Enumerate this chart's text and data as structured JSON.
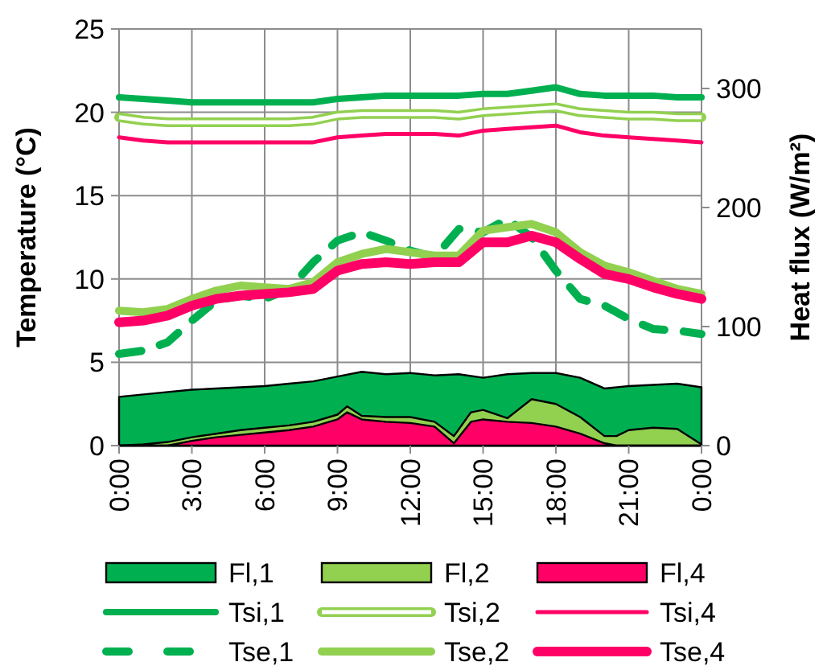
{
  "chart_data": {
    "type": "line",
    "xlabel": null,
    "ylabel": "Temperature (°C)",
    "y2label": "Heat flux (W/m²)",
    "x": [
      0,
      1,
      2,
      3,
      4,
      5,
      6,
      7,
      8,
      9,
      10,
      11,
      12,
      13,
      14,
      15,
      16,
      17,
      18,
      19,
      20,
      21,
      22,
      23,
      24
    ],
    "xlim": [
      0,
      24
    ],
    "xticks": [
      {
        "value": 0,
        "label": "0:00"
      },
      {
        "value": 3,
        "label": "3:00"
      },
      {
        "value": 6,
        "label": "6:00"
      },
      {
        "value": 9,
        "label": "9:00"
      },
      {
        "value": 12,
        "label": "12:00"
      },
      {
        "value": 15,
        "label": "15:00"
      },
      {
        "value": 18,
        "label": "18:00"
      },
      {
        "value": 21,
        "label": "21:00"
      },
      {
        "value": 24,
        "label": "0:00"
      }
    ],
    "ylim": [
      0,
      25
    ],
    "yticks": [
      0,
      5,
      10,
      15,
      20,
      25
    ],
    "y2lim": [
      0,
      350
    ],
    "y2ticks": [
      0,
      100,
      200,
      300
    ],
    "grid": true,
    "legend": "bottom",
    "series": [
      {
        "name": "Fl,1",
        "type": "area",
        "axis": "y2",
        "color": "#00b050",
        "x": [
          0,
          1,
          2,
          3,
          4,
          5,
          6,
          7,
          8,
          9,
          10,
          11,
          12,
          13,
          14,
          15,
          16,
          17,
          18,
          19,
          20,
          21,
          22,
          23,
          24
        ],
        "values": [
          41,
          43,
          45,
          47,
          48,
          49,
          50,
          52,
          54,
          58,
          62,
          60,
          61,
          59,
          60,
          57,
          60,
          61,
          61,
          57,
          48,
          50,
          51,
          52,
          49
        ]
      },
      {
        "name": "Fl,2",
        "type": "area",
        "axis": "y2",
        "color": "#92d050",
        "x": [
          0,
          1,
          2,
          3,
          4,
          5,
          6,
          7,
          8,
          9,
          9.4,
          10,
          11,
          12,
          13,
          13.8,
          14.5,
          15,
          16,
          17,
          18,
          19,
          20,
          20.5,
          21,
          22,
          23,
          24
        ],
        "values": [
          0,
          1,
          3,
          7,
          10,
          13,
          15,
          17,
          20,
          26,
          33,
          25,
          24,
          24,
          20,
          8,
          28,
          30,
          23,
          39,
          35,
          24,
          8,
          8,
          13,
          15,
          14,
          1
        ]
      },
      {
        "name": "Fl,4",
        "type": "area",
        "axis": "y2",
        "color": "#ff0066",
        "x": [
          0,
          1,
          2,
          3,
          4,
          5,
          6,
          7,
          8,
          9,
          9.4,
          10,
          11,
          12,
          13,
          13.8,
          14.5,
          15,
          16,
          17,
          18,
          19,
          20,
          20.5,
          21,
          22,
          23,
          24
        ],
        "values": [
          0,
          0,
          0,
          4,
          7,
          9,
          11,
          13,
          16,
          22,
          28,
          22,
          20,
          19,
          16,
          2,
          20,
          22,
          20,
          19,
          16,
          10,
          2,
          0,
          0,
          0,
          0,
          0
        ]
      },
      {
        "name": "Tsi,1",
        "color": "#00b050",
        "values": [
          20.9,
          20.8,
          20.7,
          20.6,
          20.6,
          20.6,
          20.6,
          20.6,
          20.6,
          20.8,
          20.9,
          21.0,
          21.0,
          21.0,
          21.0,
          21.1,
          21.1,
          21.3,
          21.5,
          21.1,
          21.0,
          21.0,
          21.0,
          20.9,
          20.9
        ]
      },
      {
        "name": "Tsi,2",
        "color": "#92d050",
        "values": [
          19.7,
          19.5,
          19.4,
          19.4,
          19.4,
          19.4,
          19.4,
          19.4,
          19.5,
          19.8,
          19.9,
          19.9,
          19.9,
          19.9,
          19.8,
          20.0,
          20.1,
          20.2,
          20.3,
          20.0,
          19.9,
          19.8,
          19.8,
          19.7,
          19.7
        ]
      },
      {
        "name": "Tsi,4",
        "color": "#ff0066",
        "values": [
          18.5,
          18.3,
          18.2,
          18.2,
          18.2,
          18.2,
          18.2,
          18.2,
          18.2,
          18.5,
          18.6,
          18.7,
          18.7,
          18.7,
          18.6,
          18.9,
          19.0,
          19.1,
          19.2,
          18.8,
          18.6,
          18.5,
          18.4,
          18.3,
          18.2
        ]
      },
      {
        "name": "Tse,1",
        "color": "#00b050",
        "line_style": "dashed",
        "values": [
          5.5,
          5.7,
          6.2,
          7.5,
          8.7,
          9.0,
          8.8,
          9.4,
          11.0,
          12.3,
          12.8,
          12.3,
          11.7,
          11.3,
          13.0,
          12.8,
          13.6,
          12.5,
          10.5,
          8.8,
          8.4,
          7.6,
          7.0,
          6.9,
          6.7
        ]
      },
      {
        "name": "Tse,2",
        "color": "#92d050",
        "values": [
          8.1,
          8.0,
          8.2,
          8.8,
          9.3,
          9.6,
          9.5,
          9.4,
          9.8,
          11.0,
          11.5,
          11.8,
          11.6,
          11.4,
          11.4,
          12.9,
          13.1,
          13.3,
          12.8,
          11.6,
          10.8,
          10.4,
          9.9,
          9.4,
          9.1
        ]
      },
      {
        "name": "Tse,4",
        "color": "#ff0066",
        "values": [
          7.4,
          7.5,
          7.8,
          8.4,
          8.8,
          9.0,
          9.1,
          9.2,
          9.4,
          10.5,
          10.9,
          11.0,
          10.9,
          11.0,
          11.0,
          12.2,
          12.2,
          12.6,
          12.2,
          11.2,
          10.3,
          10.0,
          9.5,
          9.1,
          8.8
        ]
      }
    ]
  }
}
